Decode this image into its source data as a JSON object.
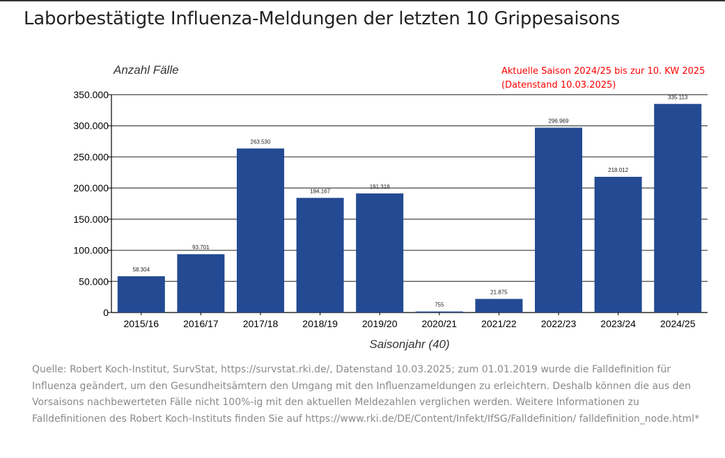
{
  "page": {
    "title": "Laborbestätigte Influenza-Meldungen der letzten 10 Grippesaisons",
    "caption": "Quelle: Robert Koch-Institut, SurvStat, https://survstat.rki.de/, Datenstand 10.03.2025; zum 01.01.2019 wurde die Falldefinition für Influenza geändert, um den Gesundheitsämtern den Umgang mit den Influenzameldungen zu erleichtern. Deshalb können die aus den Vorsaisons nachbewerteten Fälle nicht 100%-ig mit den aktuellen Meldezahlen verglichen werden. Weitere Informationen zu Falldefinitionen des Robert Koch-Instituts finden Sie auf https://www.rki.de/DE/Content/Infekt/IfSG/Falldefinition/ falldefinition_node.html*"
  },
  "chart_data": {
    "type": "bar",
    "ylabel": "Anzahl Fälle",
    "xlabel": "Saisonjahr (40)",
    "annotation_lines": [
      "Aktuelle Saison 2024/25 bis zur 10. KW 2025",
      "(Datenstand 10.03.2025)"
    ],
    "categories": [
      "2015/16",
      "2016/17",
      "2017/18",
      "2018/19",
      "2019/20",
      "2020/21",
      "2021/22",
      "2022/23",
      "2023/24",
      "2024/25"
    ],
    "values": [
      58304,
      93701,
      263530,
      184167,
      191318,
      755,
      21875,
      296969,
      218012,
      335113
    ],
    "value_labels": [
      "58.304",
      "93.701",
      "263.530",
      "184.167",
      "191.318",
      "755",
      "21.875",
      "296.969",
      "218.012",
      "335.113"
    ],
    "ylim": [
      0,
      350000
    ],
    "yticks": [
      0,
      50000,
      100000,
      150000,
      200000,
      250000,
      300000,
      350000
    ],
    "ytick_labels": [
      "0",
      "50.000",
      "100.000",
      "150.000",
      "200.000",
      "250.000",
      "300.000",
      "350.000"
    ],
    "grid": true,
    "legend": false,
    "colors": {
      "bar": "#234a92",
      "annotation": "#ff0000",
      "grid": "#444444",
      "axis": "#000000"
    }
  }
}
